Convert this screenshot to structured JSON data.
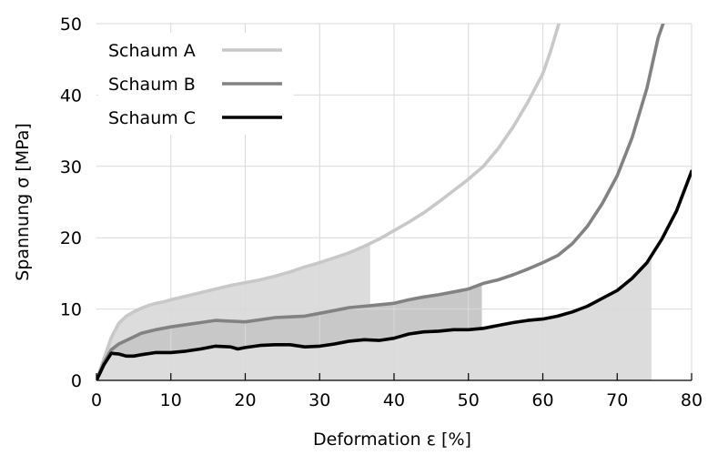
{
  "chart_data": {
    "type": "line",
    "xlabel": "Deformation ε [%]",
    "ylabel": "Spannung σ [MPa]",
    "xlim": [
      0,
      80
    ],
    "ylim": [
      0,
      50
    ],
    "x_ticks": [
      "0",
      "10",
      "20",
      "30",
      "40",
      "50",
      "60",
      "70",
      "80"
    ],
    "y_ticks": [
      "0",
      "10",
      "20",
      "30",
      "40",
      "50"
    ],
    "grid": true,
    "legend_position": "top-left",
    "series": [
      {
        "name": "Schaum A",
        "color": "#c8c8c8",
        "shade_until_x": 36.8,
        "shade_color": "#dcdcdc",
        "points": [
          [
            0,
            0
          ],
          [
            1,
            3
          ],
          [
            2,
            6
          ],
          [
            3,
            8
          ],
          [
            4,
            9
          ],
          [
            5,
            9.6
          ],
          [
            6,
            10.1
          ],
          [
            7,
            10.5
          ],
          [
            8,
            10.8
          ],
          [
            9,
            11
          ],
          [
            10,
            11.3
          ],
          [
            12,
            11.8
          ],
          [
            14,
            12.3
          ],
          [
            16,
            12.8
          ],
          [
            18,
            13.3
          ],
          [
            20,
            13.7
          ],
          [
            22,
            14.1
          ],
          [
            24,
            14.6
          ],
          [
            26,
            15.2
          ],
          [
            28,
            15.9
          ],
          [
            30,
            16.5
          ],
          [
            32,
            17.2
          ],
          [
            34,
            17.9
          ],
          [
            36,
            18.8
          ],
          [
            38,
            19.8
          ],
          [
            40,
            21
          ],
          [
            42,
            22.2
          ],
          [
            44,
            23.5
          ],
          [
            46,
            25
          ],
          [
            48,
            26.6
          ],
          [
            50,
            28.2
          ],
          [
            52,
            30
          ],
          [
            54,
            32.5
          ],
          [
            56,
            35.5
          ],
          [
            58,
            39
          ],
          [
            60,
            43
          ],
          [
            61,
            46
          ],
          [
            62,
            49.5
          ],
          [
            62.5,
            51
          ]
        ]
      },
      {
        "name": "Schaum B",
        "color": "#828282",
        "shade_until_x": 51.8,
        "shade_color": "#c8c8c8",
        "points": [
          [
            0,
            0
          ],
          [
            1,
            2.5
          ],
          [
            2,
            4.3
          ],
          [
            3,
            5.1
          ],
          [
            4,
            5.6
          ],
          [
            5,
            6.1
          ],
          [
            6,
            6.6
          ],
          [
            8,
            7.1
          ],
          [
            10,
            7.5
          ],
          [
            12,
            7.8
          ],
          [
            14,
            8.1
          ],
          [
            16,
            8.4
          ],
          [
            18,
            8.3
          ],
          [
            20,
            8.2
          ],
          [
            22,
            8.5
          ],
          [
            24,
            8.8
          ],
          [
            26,
            8.9
          ],
          [
            28,
            9
          ],
          [
            30,
            9.4
          ],
          [
            32,
            9.8
          ],
          [
            34,
            10.2
          ],
          [
            36,
            10.4
          ],
          [
            38,
            10.6
          ],
          [
            40,
            10.8
          ],
          [
            42,
            11.3
          ],
          [
            44,
            11.7
          ],
          [
            46,
            12
          ],
          [
            48,
            12.4
          ],
          [
            50,
            12.8
          ],
          [
            52,
            13.6
          ],
          [
            54,
            14.1
          ],
          [
            56,
            14.8
          ],
          [
            58,
            15.6
          ],
          [
            60,
            16.5
          ],
          [
            62,
            17.5
          ],
          [
            64,
            19.2
          ],
          [
            66,
            21.6
          ],
          [
            68,
            24.8
          ],
          [
            70,
            28.7
          ],
          [
            72,
            34
          ],
          [
            74,
            41
          ],
          [
            75.5,
            48
          ],
          [
            76.5,
            51
          ]
        ]
      },
      {
        "name": "Schaum C",
        "color": "#000000",
        "shade_until_x": 74.6,
        "shade_color": "#dcdcdc",
        "points": [
          [
            0,
            0
          ],
          [
            1,
            2.2
          ],
          [
            2,
            3.8
          ],
          [
            3,
            3.7
          ],
          [
            4,
            3.4
          ],
          [
            5,
            3.4
          ],
          [
            6,
            3.6
          ],
          [
            8,
            3.9
          ],
          [
            10,
            3.9
          ],
          [
            12,
            4.1
          ],
          [
            14,
            4.4
          ],
          [
            16,
            4.8
          ],
          [
            18,
            4.7
          ],
          [
            19,
            4.4
          ],
          [
            20,
            4.6
          ],
          [
            22,
            4.9
          ],
          [
            24,
            5
          ],
          [
            26,
            5
          ],
          [
            28,
            4.7
          ],
          [
            30,
            4.8
          ],
          [
            32,
            5.1
          ],
          [
            34,
            5.5
          ],
          [
            36,
            5.7
          ],
          [
            38,
            5.6
          ],
          [
            40,
            5.9
          ],
          [
            42,
            6.5
          ],
          [
            44,
            6.8
          ],
          [
            46,
            6.9
          ],
          [
            48,
            7.1
          ],
          [
            50,
            7.1
          ],
          [
            52,
            7.3
          ],
          [
            54,
            7.7
          ],
          [
            56,
            8.1
          ],
          [
            58,
            8.4
          ],
          [
            60,
            8.6
          ],
          [
            62,
            9
          ],
          [
            64,
            9.6
          ],
          [
            66,
            10.4
          ],
          [
            68,
            11.5
          ],
          [
            70,
            12.6
          ],
          [
            72,
            14.3
          ],
          [
            74,
            16.5
          ],
          [
            76,
            19.8
          ],
          [
            78,
            23.8
          ],
          [
            80,
            29.3
          ]
        ]
      }
    ]
  }
}
